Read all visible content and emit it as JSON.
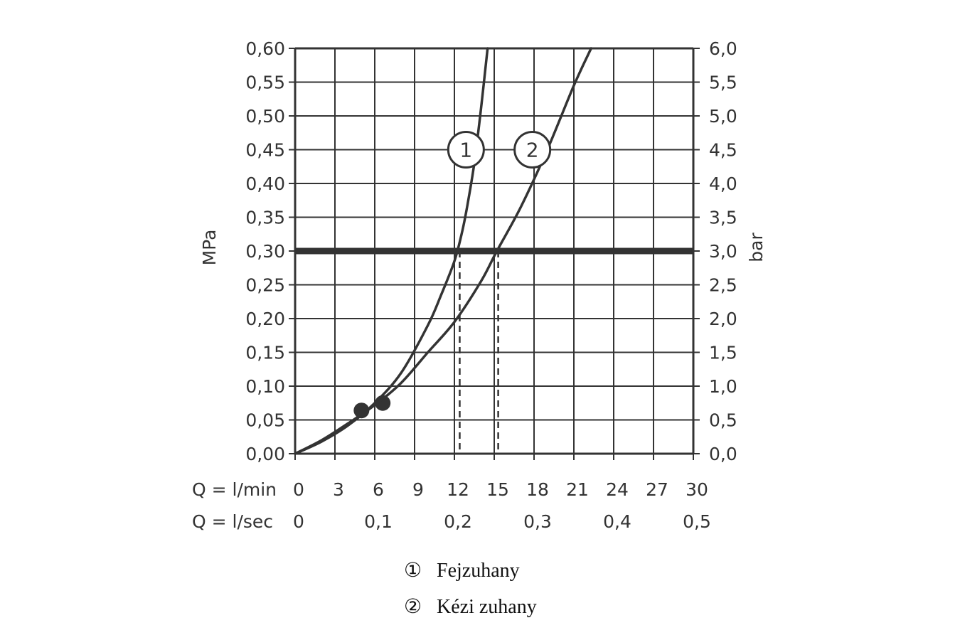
{
  "chart_data": {
    "type": "line",
    "y_left": {
      "label": "MPa",
      "ticks": [
        "0,00",
        "0,05",
        "0,10",
        "0,15",
        "0,20",
        "0,25",
        "0,30",
        "0,35",
        "0,40",
        "0,45",
        "0,50",
        "0,55",
        "0,60"
      ],
      "range": [
        0,
        0.6
      ]
    },
    "y_right": {
      "label": "bar",
      "ticks": [
        "0,0",
        "0,5",
        "1,0",
        "1,5",
        "2,0",
        "2,5",
        "3,0",
        "3,5",
        "4,0",
        "4,5",
        "5,0",
        "5,5",
        "6,0"
      ],
      "range": [
        0,
        6
      ]
    },
    "x_primary": {
      "label": "Q = l/min",
      "ticks": [
        "0",
        "3",
        "6",
        "9",
        "12",
        "15",
        "18",
        "21",
        "24",
        "27",
        "30"
      ],
      "range": [
        0,
        30
      ]
    },
    "x_secondary": {
      "label": "Q = l/sec",
      "ticks": [
        {
          "value": 0,
          "label": "0"
        },
        {
          "value": 0.1,
          "label": "0,1"
        },
        {
          "value": 0.2,
          "label": "0,2"
        },
        {
          "value": 0.3,
          "label": "0,3"
        },
        {
          "value": 0.4,
          "label": "0,4"
        },
        {
          "value": 0.5,
          "label": "0,5"
        }
      ]
    },
    "grid": true,
    "reference_line": {
      "y": 0.3
    },
    "series": [
      {
        "marker": "1",
        "x": [
          0,
          2,
          4,
          6,
          8,
          10,
          11,
          12,
          12.6,
          13,
          13.5,
          14.0,
          14.5
        ],
        "y": [
          0,
          0.018,
          0.042,
          0.075,
          0.12,
          0.19,
          0.235,
          0.285,
          0.33,
          0.37,
          0.43,
          0.51,
          0.6
        ],
        "dot": {
          "x": 6.6,
          "y": 0.075
        },
        "marker_position": {
          "x": 14.0,
          "y": 0.45
        },
        "drop_line_x": 12.4
      },
      {
        "marker": "2",
        "x": [
          0,
          2,
          4,
          6,
          8,
          10,
          12,
          14,
          15.2,
          17,
          19,
          21,
          22.3
        ],
        "y": [
          0,
          0.02,
          0.045,
          0.072,
          0.105,
          0.15,
          0.195,
          0.255,
          0.3,
          0.365,
          0.45,
          0.545,
          0.6
        ],
        "dot": {
          "x": 5.0,
          "y": 0.064
        },
        "marker_position": {
          "x": 19.0,
          "y": 0.45
        },
        "drop_line_x": 15.3
      }
    ],
    "legend": {
      "placement": "bottom",
      "items": [
        {
          "symbol": "①",
          "text": "Fejzuhany"
        },
        {
          "symbol": "②",
          "text": "Kézi zuhany"
        }
      ]
    },
    "colors": {
      "line": "#333333",
      "grid": "#333333",
      "background": "#ffffff"
    }
  }
}
